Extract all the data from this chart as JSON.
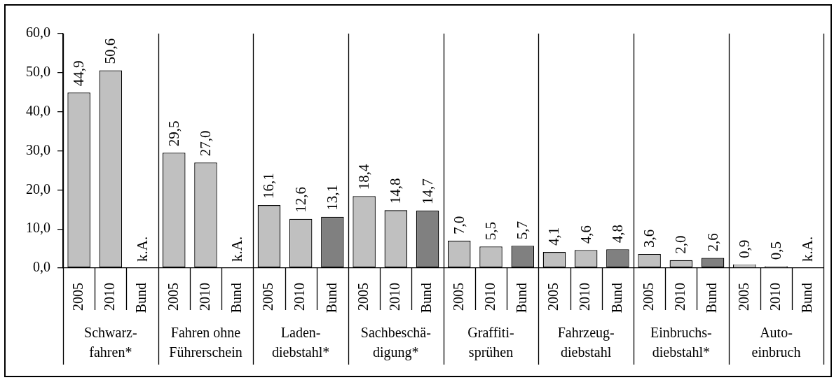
{
  "chart_data": {
    "type": "bar",
    "categories": [
      "2005",
      "2010",
      "Bund",
      "2005",
      "2010",
      "Bund",
      "2005",
      "2010",
      "Bund",
      "2005",
      "2010",
      "Bund",
      "2005",
      "2010",
      "Bund",
      "2005",
      "2010",
      "Bund",
      "2005",
      "2010",
      "Bund",
      "2005",
      "2010",
      "Bund"
    ],
    "values": [
      44.9,
      50.6,
      null,
      29.5,
      27.0,
      null,
      16.1,
      12.6,
      13.1,
      18.4,
      14.8,
      14.7,
      7.0,
      5.5,
      5.7,
      4.1,
      4.6,
      4.8,
      3.6,
      2.0,
      2.6,
      0.9,
      0.5,
      null
    ],
    "value_labels": [
      "44,9",
      "50,6",
      "k.A.",
      "29,5",
      "27,0",
      "k.A.",
      "16,1",
      "12,6",
      "13,1",
      "18,4",
      "14,8",
      "14,7",
      "7,0",
      "5,5",
      "5,7",
      "4,1",
      "4,6",
      "4,8",
      "3,6",
      "2,0",
      "2,6",
      "0,9",
      "0,5",
      "k.A."
    ],
    "colors": [
      "#c0c0c0",
      "#c0c0c0",
      "#808080",
      "#c0c0c0",
      "#c0c0c0",
      "#808080",
      "#c0c0c0",
      "#c0c0c0",
      "#808080",
      "#c0c0c0",
      "#c0c0c0",
      "#808080",
      "#c0c0c0",
      "#c0c0c0",
      "#808080",
      "#c0c0c0",
      "#c0c0c0",
      "#808080",
      "#c0c0c0",
      "#c0c0c0",
      "#808080",
      "#c0c0c0",
      "#c0c0c0",
      "#808080"
    ],
    "annotations": [
      "Schwarz-\nfahren*",
      "Fahren ohne\nFührerschein",
      "Laden-\ndiebstahl*",
      "Sachbeschä-\ndigung*",
      "Graffiti-\nsprühen",
      "Fahrzeug-\ndiebstahl",
      "Einbruchs-\ndiebstahl*",
      "Auto-\neinbruch"
    ],
    "ylim": [
      0,
      60
    ],
    "yticks": [
      {
        "value": 0,
        "label": "0,0"
      },
      {
        "value": 10,
        "label": "10,0"
      },
      {
        "value": 20,
        "label": "20,0"
      },
      {
        "value": 30,
        "label": "30,0"
      },
      {
        "value": 40,
        "label": "40,0"
      },
      {
        "value": 50,
        "label": "50,0"
      },
      {
        "value": 60,
        "label": "60,0"
      }
    ]
  }
}
